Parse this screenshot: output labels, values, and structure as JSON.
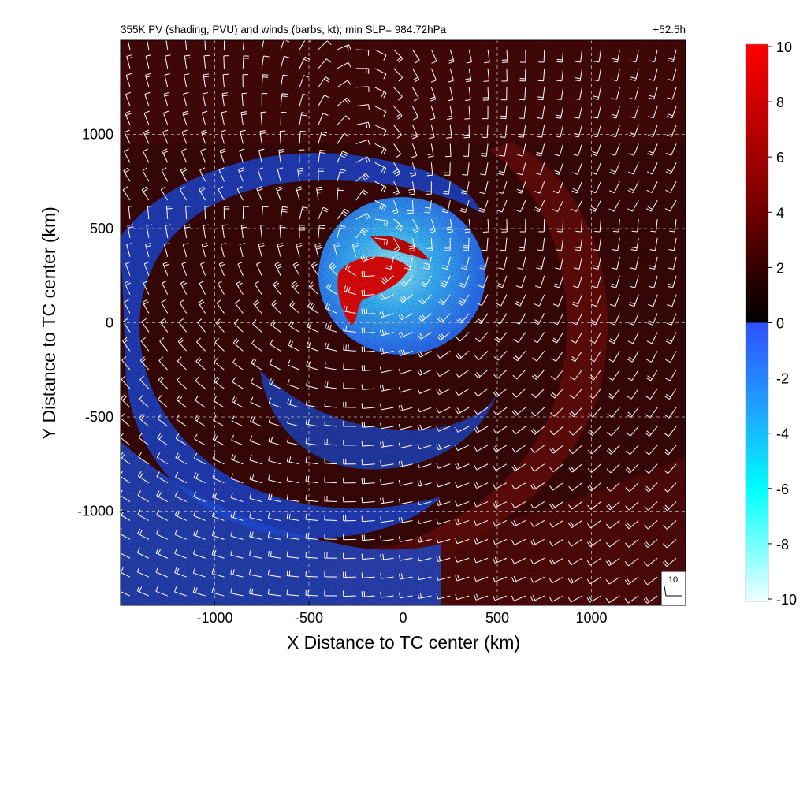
{
  "chart_data": {
    "type": "heatmap",
    "title": "355K PV (shading, PVU) and winds (barbs, kt); min SLP= 984.72hPa",
    "time_label": "+52.5h",
    "xlabel": "X Distance to TC center (km)",
    "ylabel": "Y Distance to TC center (km)",
    "xlim": [
      -1500,
      1500
    ],
    "ylim": [
      -1500,
      1500
    ],
    "x_ticks": [
      -1000,
      -500,
      0,
      500,
      1000
    ],
    "y_ticks": [
      -1000,
      -500,
      0,
      500,
      1000
    ],
    "x_tick_labels": [
      "-1000",
      "-500",
      "0",
      "500",
      "1000"
    ],
    "y_tick_labels": [
      "-1000",
      "-500",
      "0",
      "500",
      "1000"
    ],
    "grid": true,
    "field": "355K PV (PVU)",
    "colorbar": {
      "range": [
        -10,
        10
      ],
      "ticks": [
        10,
        8,
        6,
        4,
        2,
        0,
        -2,
        -4,
        -6,
        -8,
        -10
      ],
      "tick_labels": [
        "10",
        "8",
        "6",
        "4",
        "2",
        "0",
        "-2",
        "-4",
        "-6",
        "-8",
        "-10"
      ],
      "stops": [
        {
          "value": 10,
          "color": "#ff0000"
        },
        {
          "value": 5,
          "color": "#8c0000"
        },
        {
          "value": 1,
          "color": "#1a0000"
        },
        {
          "value": 0,
          "color": "#000000"
        },
        {
          "value": -0.01,
          "color": "#3050ff"
        },
        {
          "value": -3,
          "color": "#20a0ff"
        },
        {
          "value": -6,
          "color": "#00ffff"
        },
        {
          "value": -10,
          "color": "#f0ffff"
        }
      ]
    },
    "features": [
      {
        "kind": "negative_pv_core",
        "center_km": [
          -150,
          350
        ],
        "radius_km": 450,
        "color": "#2a8cff"
      },
      {
        "kind": "positive_pv_core",
        "center_km": [
          -180,
          260
        ],
        "radius_km": 180,
        "color": "#e00000"
      },
      {
        "kind": "negative_pv_spiral_band",
        "color": "#1f4fe0"
      },
      {
        "kind": "positive_pv_rainband",
        "color": "#6a0a0a"
      }
    ],
    "wind_barbs": {
      "units": "kt",
      "color": "#ffffff",
      "circulation": "cyclonic",
      "spacing_km": 100
    },
    "reference_vector": {
      "label": "10",
      "units": "kt"
    }
  }
}
